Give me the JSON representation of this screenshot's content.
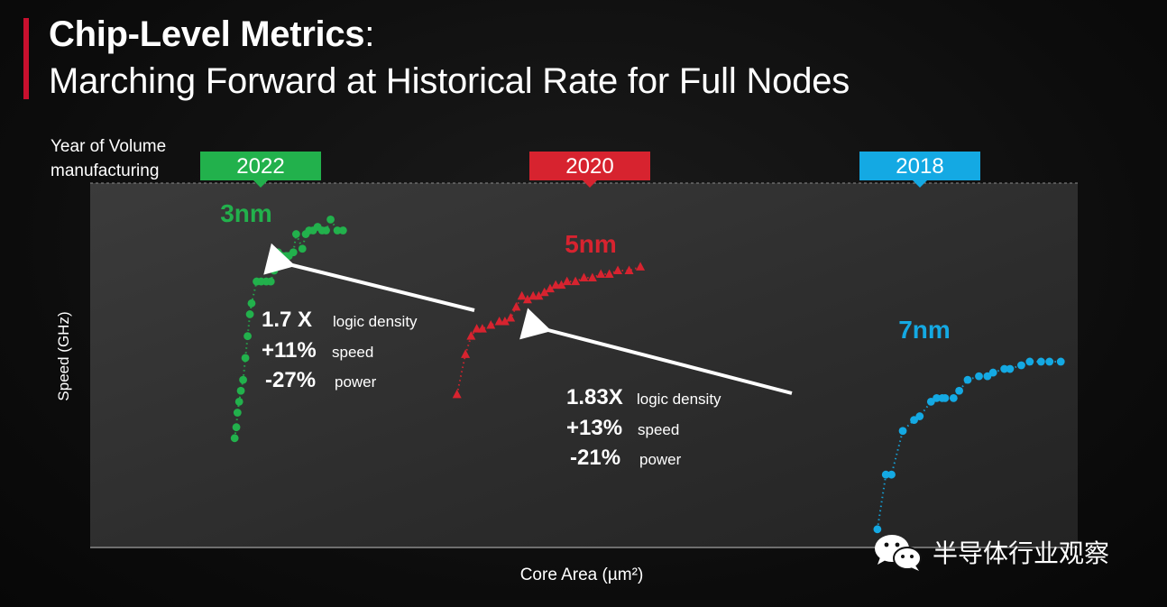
{
  "slide": {
    "title_bold": "Chip-Level Metrics",
    "title_colon": ":",
    "subtitle": "Marching Forward at Historical Rate for Full Nodes"
  },
  "watermark": {
    "text": "半导体行业观察",
    "icon": "wechat-icon"
  },
  "colors": {
    "accent": "#c8102e",
    "n3": "#22b14c",
    "n5": "#d7232f",
    "n7": "#14a9e3"
  },
  "chart_data": {
    "type": "scatter",
    "xlabel": "Core Area (µm²)",
    "ylabel": "Speed (GHz)",
    "year_axis_label": "Year of Volume manufacturing",
    "grid": false,
    "series": [
      {
        "name": "3nm",
        "year": "2022",
        "color_key": "n3",
        "marker": "circle",
        "points": [
          [
            0.6,
            0.3
          ],
          [
            0.9,
            0.33
          ],
          [
            1.1,
            0.37
          ],
          [
            1.4,
            0.4
          ],
          [
            1.7,
            0.43
          ],
          [
            2.1,
            0.46
          ],
          [
            2.5,
            0.52
          ],
          [
            2.9,
            0.58
          ],
          [
            3.3,
            0.64
          ],
          [
            3.6,
            0.67
          ],
          [
            4.5,
            0.73
          ],
          [
            5.3,
            0.73
          ],
          [
            6.2,
            0.73
          ],
          [
            7.0,
            0.73
          ],
          [
            7.6,
            0.76
          ],
          [
            8.3,
            0.81
          ],
          [
            9.0,
            0.8
          ],
          [
            9.7,
            0.8
          ],
          [
            10.2,
            0.8
          ],
          [
            11.0,
            0.81
          ],
          [
            11.5,
            0.86
          ],
          [
            12.6,
            0.82
          ],
          [
            13.2,
            0.86
          ],
          [
            13.8,
            0.87
          ],
          [
            14.5,
            0.87
          ],
          [
            15.3,
            0.88
          ],
          [
            16.1,
            0.87
          ],
          [
            16.8,
            0.87
          ],
          [
            17.6,
            0.9
          ],
          [
            18.8,
            0.87
          ],
          [
            19.8,
            0.87
          ]
        ]
      },
      {
        "name": "5nm",
        "year": "2020",
        "color_key": "n5",
        "marker": "triangle",
        "points": [
          [
            40.0,
            0.42
          ],
          [
            41.5,
            0.53
          ],
          [
            42.5,
            0.58
          ],
          [
            43.5,
            0.6
          ],
          [
            44.5,
            0.6
          ],
          [
            46.0,
            0.61
          ],
          [
            47.5,
            0.62
          ],
          [
            48.5,
            0.62
          ],
          [
            49.5,
            0.63
          ],
          [
            50.5,
            0.66
          ],
          [
            51.5,
            0.69
          ],
          [
            52.5,
            0.68
          ],
          [
            53.5,
            0.69
          ],
          [
            54.5,
            0.69
          ],
          [
            55.5,
            0.7
          ],
          [
            56.5,
            0.71
          ],
          [
            57.5,
            0.72
          ],
          [
            58.5,
            0.72
          ],
          [
            59.5,
            0.73
          ],
          [
            61.0,
            0.73
          ],
          [
            62.5,
            0.74
          ],
          [
            64.0,
            0.74
          ],
          [
            65.5,
            0.75
          ],
          [
            67.0,
            0.75
          ],
          [
            68.5,
            0.76
          ],
          [
            70.5,
            0.76
          ],
          [
            72.5,
            0.77
          ]
        ]
      },
      {
        "name": "7nm",
        "year": "2018",
        "color_key": "n7",
        "marker": "circle",
        "points": [
          [
            114.5,
            0.05
          ],
          [
            116.0,
            0.2
          ],
          [
            117.0,
            0.2
          ],
          [
            119.0,
            0.32
          ],
          [
            121.0,
            0.35
          ],
          [
            122.0,
            0.36
          ],
          [
            124.0,
            0.4
          ],
          [
            125.0,
            0.41
          ],
          [
            126.0,
            0.41
          ],
          [
            126.5,
            0.41
          ],
          [
            128.0,
            0.41
          ],
          [
            129.0,
            0.43
          ],
          [
            130.5,
            0.46
          ],
          [
            132.5,
            0.47
          ],
          [
            134.0,
            0.47
          ],
          [
            135.0,
            0.48
          ],
          [
            137.0,
            0.49
          ],
          [
            138.0,
            0.49
          ],
          [
            140.0,
            0.5
          ],
          [
            141.5,
            0.51
          ],
          [
            143.5,
            0.51
          ],
          [
            145.0,
            0.51
          ],
          [
            147.0,
            0.51
          ]
        ]
      }
    ],
    "annotations": [
      {
        "from": "5nm",
        "to": "3nm",
        "ratio": "1.7 X",
        "density": "logic density",
        "speed": "+11%",
        "speed_label": "speed",
        "power": "-27%",
        "power_label": "power"
      },
      {
        "from": "7nm",
        "to": "5nm",
        "ratio": "1.83X",
        "density": "logic density",
        "speed": "+13%",
        "speed_label": "speed",
        "power": "-21%",
        "power_label": "power"
      }
    ]
  }
}
